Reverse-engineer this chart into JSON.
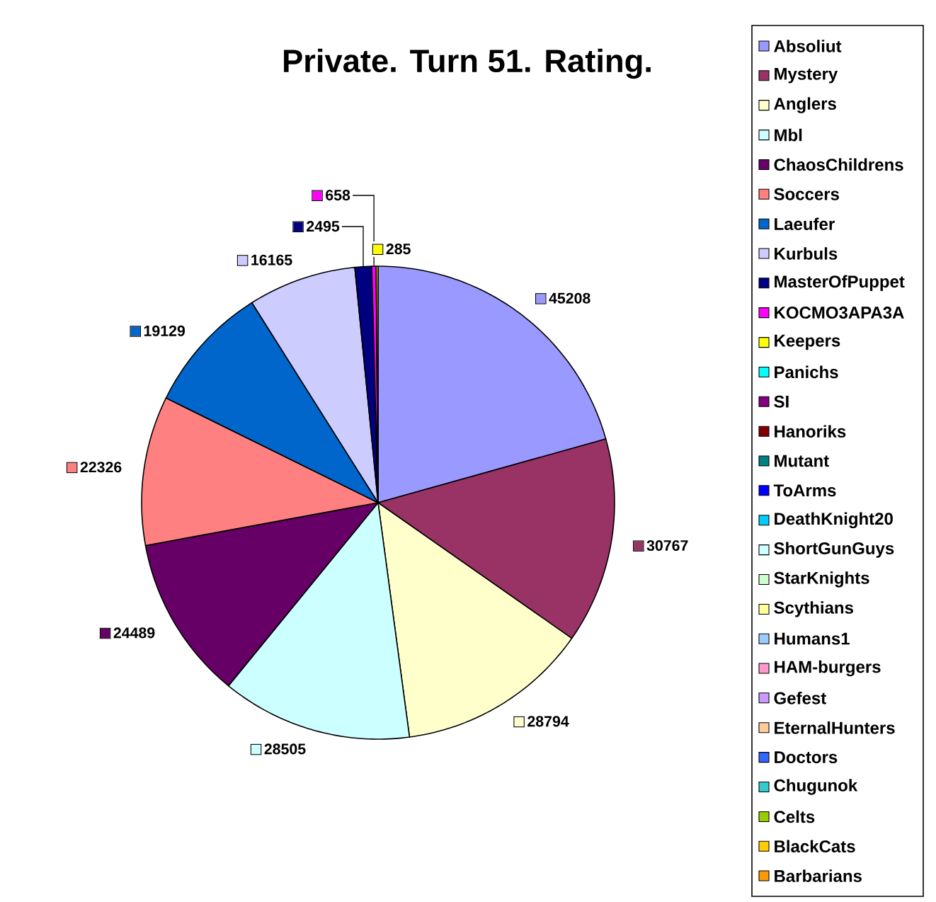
{
  "chart_data": {
    "type": "pie",
    "title": "Private. Turn 51. Rating.",
    "legend": "right",
    "categories": [
      "Absoliut",
      "Mystery",
      "Anglers",
      "Mbl",
      "ChaosChildrens",
      "Soccers",
      "Laeufer",
      "Kurbuls",
      "MasterOfPuppet",
      "KOCMO3APA3A",
      "Keepers",
      "Panichs",
      "SI",
      "Hanoriks",
      "Mutant",
      "ToArms",
      "DeathKnight20",
      "ShortGunGuys",
      "StarKnights",
      "Scythians",
      "Humans1",
      "HAM-burgers",
      "Gefest",
      "EternalHunters",
      "Doctors",
      "Chugunok",
      "Celts",
      "BlackCats",
      "Barbarians"
    ],
    "values": [
      45208,
      30767,
      28794,
      28505,
      24489,
      22326,
      19129,
      16165,
      2495,
      658,
      285,
      0,
      0,
      0,
      0,
      0,
      0,
      0,
      0,
      0,
      0,
      0,
      0,
      0,
      0,
      0,
      0,
      0,
      0
    ],
    "value_labels": [
      "45208",
      "30767",
      "28794",
      "28505",
      "24489",
      "22326",
      "19129",
      "16165",
      "2495",
      "658",
      "285",
      null,
      null,
      null,
      null,
      null,
      null,
      null,
      null,
      null,
      null,
      null,
      null,
      null,
      null,
      null,
      null,
      null,
      null
    ],
    "colors": [
      "#9999ff",
      "#993366",
      "#ffffcc",
      "#ccffff",
      "#660066",
      "#ff8080",
      "#0066cc",
      "#ccccff",
      "#000080",
      "#ff00ff",
      "#ffff00",
      "#00ffff",
      "#800080",
      "#800000",
      "#008080",
      "#0000ff",
      "#00ccff",
      "#ccffff",
      "#ccffcc",
      "#ffff99",
      "#99ccff",
      "#ff99cc",
      "#cc99ff",
      "#ffcc99",
      "#3366ff",
      "#33cccc",
      "#99cc00",
      "#ffcc00",
      "#ff9900"
    ]
  }
}
